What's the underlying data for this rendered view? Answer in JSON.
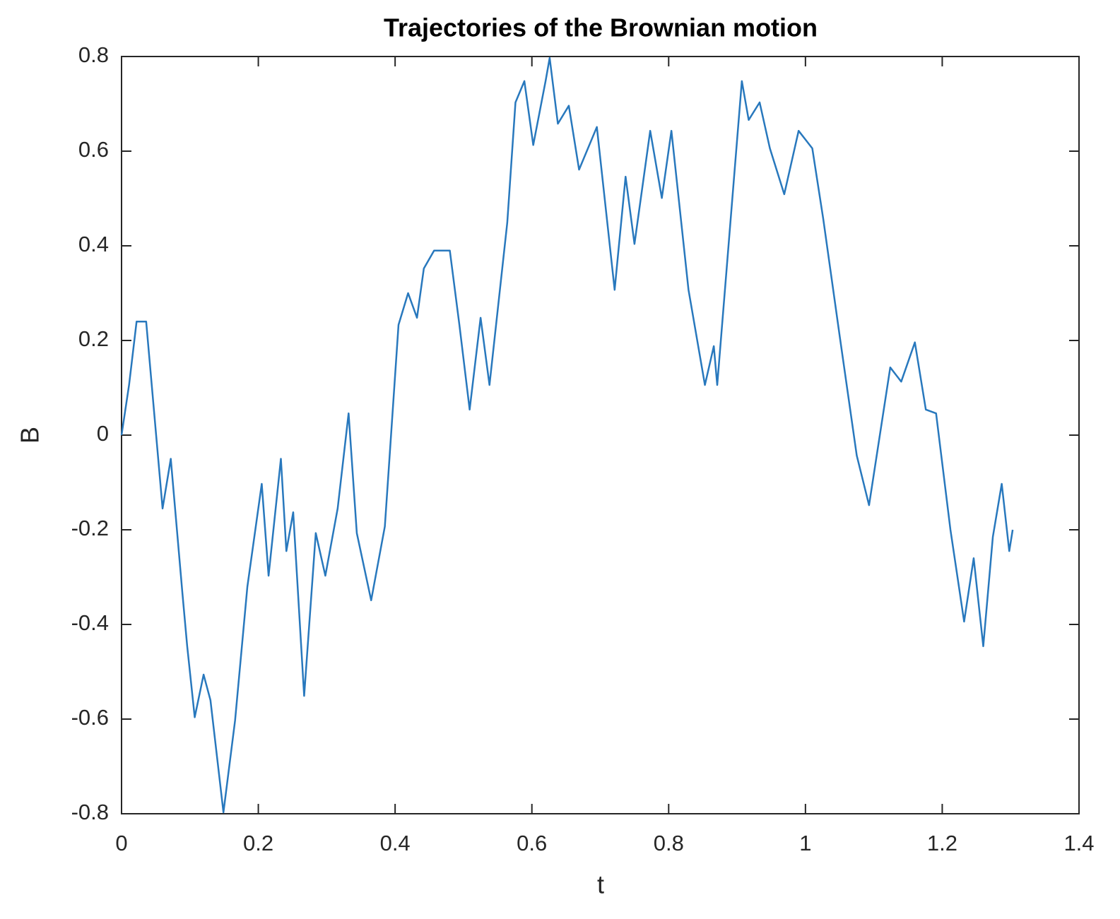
{
  "chart_data": {
    "type": "line",
    "title": "Trajectories of the Brownian motion",
    "x_label": "t",
    "y_label": "B",
    "x": [
      0,
      0.011,
      0.022,
      0.036,
      0.06,
      0.072,
      0.089,
      0.096,
      0.107,
      0.12,
      0.13,
      0.149,
      0.166,
      0.184,
      0.205,
      0.215,
      0.233,
      0.241,
      0.251,
      0.267,
      0.284,
      0.298,
      0.316,
      0.332,
      0.344,
      0.365,
      0.385,
      0.405,
      0.419,
      0.432,
      0.442,
      0.457,
      0.48,
      0.494,
      0.509,
      0.525,
      0.538,
      0.564,
      0.576,
      0.589,
      0.602,
      0.62,
      0.626,
      0.638,
      0.654,
      0.669,
      0.695,
      0.721,
      0.737,
      0.75,
      0.773,
      0.79,
      0.804,
      0.829,
      0.853,
      0.866,
      0.871,
      0.907,
      0.917,
      0.933,
      0.948,
      0.969,
      0.99,
      1.01,
      1.026,
      1.05,
      1.075,
      1.093,
      1.124,
      1.14,
      1.16,
      1.176,
      1.191,
      1.212,
      1.232,
      1.246,
      1.26,
      1.274,
      1.287,
      1.298,
      1.303
    ],
    "series": [
      {
        "name": "B",
        "color": "#2878bd",
        "values": [
          0,
          0.106,
          0.24,
          0.24,
          -0.155,
          -0.05,
          -0.334,
          -0.446,
          -0.596,
          -0.506,
          -0.56,
          -0.797,
          -0.603,
          -0.32,
          -0.103,
          -0.297,
          -0.05,
          -0.245,
          -0.163,
          -0.551,
          -0.207,
          -0.297,
          -0.155,
          0.046,
          -0.207,
          -0.349,
          -0.193,
          0.233,
          0.3,
          0.248,
          0.352,
          0.39,
          0.39,
          0.233,
          0.054,
          0.248,
          0.106,
          0.449,
          0.703,
          0.748,
          0.613,
          0.748,
          0.797,
          0.658,
          0.696,
          0.561,
          0.651,
          0.307,
          0.546,
          0.404,
          0.643,
          0.501,
          0.643,
          0.307,
          0.106,
          0.188,
          0.106,
          0.748,
          0.666,
          0.703,
          0.606,
          0.509,
          0.643,
          0.606,
          0.457,
          0.21,
          -0.043,
          -0.148,
          0.143,
          0.113,
          0.196,
          0.054,
          0.046,
          -0.2,
          -0.394,
          -0.26,
          -0.446,
          -0.215,
          -0.103,
          -0.245,
          -0.2
        ]
      }
    ],
    "xlim": [
      0,
      1.4
    ],
    "ylim": [
      -0.8,
      0.8
    ],
    "xticks": [
      0,
      0.2,
      0.4,
      0.6,
      0.8,
      1,
      1.2,
      1.4
    ],
    "yticks": [
      -0.8,
      -0.6,
      -0.4,
      -0.2,
      0,
      0.2,
      0.4,
      0.6,
      0.8
    ]
  }
}
